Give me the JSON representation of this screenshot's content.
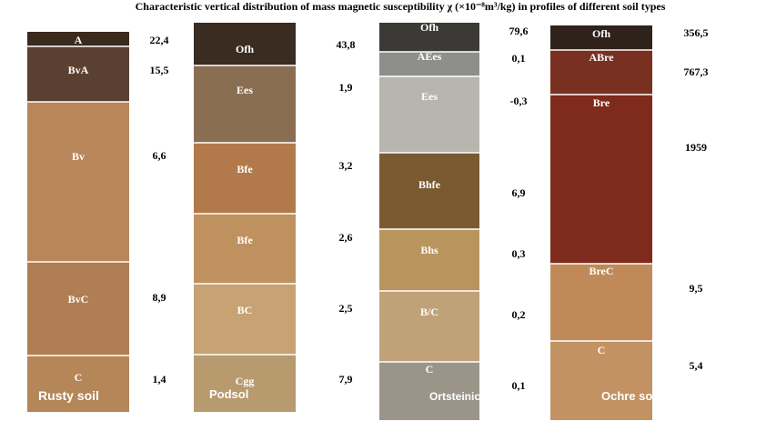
{
  "title": "Characteristic vertical distribution of mass magnetic susceptibility χ (×10⁻⁸m³/kg) in profiles of different soil types",
  "profiles": [
    {
      "name": "Rusty soil",
      "horizons": [
        {
          "label": "A",
          "value": "22,4"
        },
        {
          "label": "BvA",
          "value": "15,5"
        },
        {
          "label": "Bv",
          "value": "6,6"
        },
        {
          "label": "BvC",
          "value": "8,9"
        },
        {
          "label": "C",
          "value": "1,4"
        }
      ]
    },
    {
      "name": "Podsol",
      "horizons": [
        {
          "label": "Ofh",
          "value": "43,8"
        },
        {
          "label": "Ees",
          "value": "1,9"
        },
        {
          "label": "Bfe",
          "value": "3,2"
        },
        {
          "label": "Bfe",
          "value": "2,6"
        },
        {
          "label": "BC",
          "value": "2,5"
        },
        {
          "label": "Cgg",
          "value": "7,9"
        }
      ]
    },
    {
      "name": "Ortsteinic Podzol",
      "horizons": [
        {
          "label": "Ofh",
          "value": "79,6"
        },
        {
          "label": "AEes",
          "value": "0,1"
        },
        {
          "label": "Ees",
          "value": "-0,3"
        },
        {
          "label": "Bhfe",
          "value": "6,9"
        },
        {
          "label": "Bhs",
          "value": "0,3"
        },
        {
          "label": "B/C",
          "value": "0,2"
        },
        {
          "label": "C",
          "value": "0,1"
        }
      ]
    },
    {
      "name": "Ochre soil",
      "horizons": [
        {
          "label": "Ofh",
          "value": "356,5"
        },
        {
          "label": "ABre",
          "value": "767,3"
        },
        {
          "label": "Bre",
          "value": "1959"
        },
        {
          "label": "BreC",
          "value": "9,5"
        },
        {
          "label": "C",
          "value": "5,4"
        }
      ]
    }
  ]
}
